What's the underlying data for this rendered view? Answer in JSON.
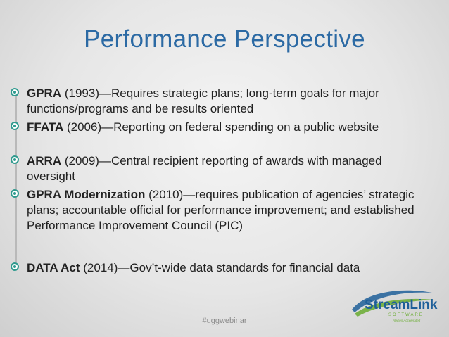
{
  "slide": {
    "title": "Performance Perspective",
    "bullets": [
      {
        "bold": "GPRA",
        "rest": " (1993)—Requires strategic plans; long-term goals for major functions/programs and be results oriented"
      },
      {
        "bold": "FFATA",
        "rest": " (2006)—Reporting on federal spending on a public website"
      },
      {
        "bold": "ARRA",
        "rest": " (2009)—Central recipient reporting of awards with managed oversight"
      },
      {
        "bold": "GPRA Modernization",
        "rest": " (2010)—requires publication of agencies’ strategic plans; accountable official for performance improvement; and established Performance Improvement Council (PIC)"
      },
      {
        "bold": "DATA Act",
        "rest": " (2014)—Gov’t-wide data standards for financial data"
      }
    ],
    "hashtag": "#uggwebinar",
    "logo": {
      "name": "StreamLink",
      "subtitle": "SOFTWARE",
      "tagline": "Always Accelerated"
    },
    "colors": {
      "title": "#2c6aa4",
      "bullet_accent": "#2f9a8e",
      "logo_blue": "#1f5f99",
      "logo_green": "#6fae3a"
    }
  }
}
